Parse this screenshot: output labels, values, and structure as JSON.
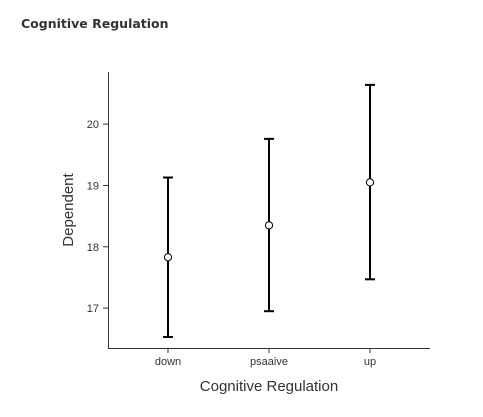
{
  "section": {
    "title": "Cognitive Regulation"
  },
  "chart_data": {
    "type": "scatter",
    "subtype": "point-with-error-bars",
    "title": "",
    "xlabel": "Cognitive Regulation",
    "ylabel": "Dependent",
    "categories": [
      "down",
      "psaaive",
      "up"
    ],
    "series": [
      {
        "values": [
          17.83,
          18.35,
          19.05
        ],
        "lower": [
          16.53,
          16.95,
          17.47
        ],
        "upper": [
          19.13,
          19.76,
          20.64
        ]
      }
    ],
    "yticks": [
      17,
      18,
      19,
      20
    ],
    "ylim": [
      16.35,
      20.85
    ],
    "grid": false,
    "legend": "none",
    "colors": {
      "line": "#000000",
      "marker_fill": "#ffffff",
      "axis": "#333333",
      "text": "#333333"
    }
  }
}
